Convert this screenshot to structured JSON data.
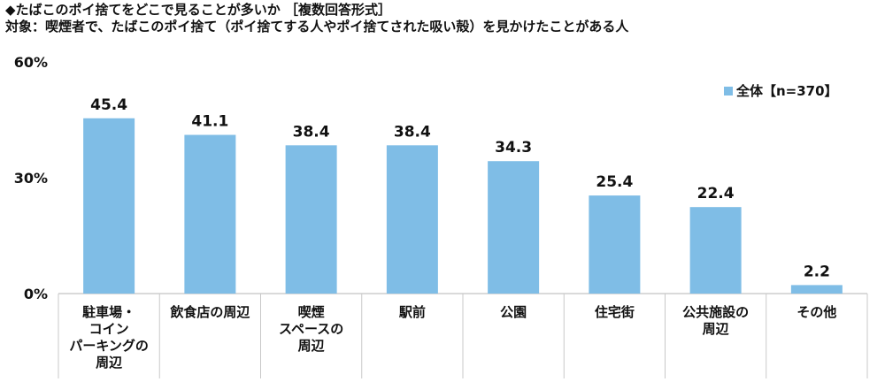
{
  "title": "◆たばこのポイ捨てをどこで見ることが多いか ［複数回答形式］",
  "subtitle": "対象：喫煙者で、たばこのポイ捨て（ポイ捨てする人やポイ捨てされた吸い殻）を見かけたことがある人",
  "chart_data": {
    "type": "bar",
    "categories": [
      [
        "駐車場・",
        "コイン",
        "パーキングの",
        "周辺"
      ],
      [
        "飲食店の周辺"
      ],
      [
        "喫煙",
        "スペースの",
        "周辺"
      ],
      [
        "駅前"
      ],
      [
        "公園"
      ],
      [
        "住宅街"
      ],
      [
        "公共施設の",
        "周辺"
      ],
      [
        "その他"
      ]
    ],
    "series": [
      {
        "name": "全体【n=370】",
        "values": [
          45.4,
          41.1,
          38.4,
          38.4,
          34.3,
          25.4,
          22.4,
          2.2
        ]
      }
    ],
    "value_labels": [
      "45.4",
      "41.1",
      "38.4",
      "38.4",
      "34.3",
      "25.4",
      "22.4",
      "2.2"
    ],
    "ylim": [
      0,
      60
    ],
    "yticks": [
      0,
      30,
      60
    ],
    "ytick_labels": [
      "0%",
      "30%",
      "60%"
    ],
    "grid": false,
    "legend": "top-right",
    "bar_color": "#7fbde6"
  }
}
